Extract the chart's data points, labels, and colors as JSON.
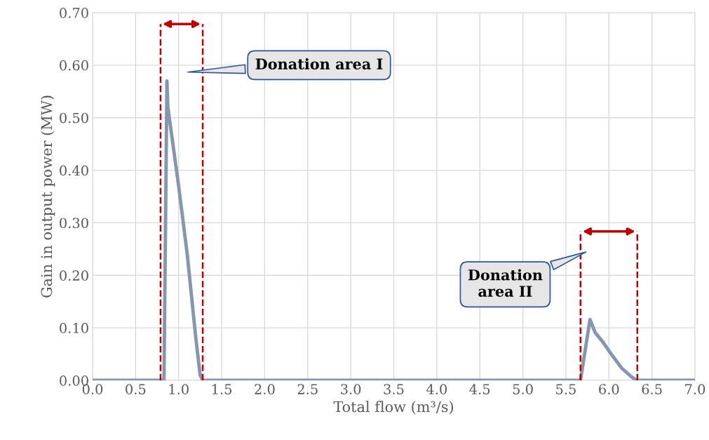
{
  "chart_data": {
    "type": "line",
    "xlabel": "Total flow (m³/s)",
    "ylabel": "Gain in output power (MW)",
    "x": [
      0,
      0.83,
      0.864,
      0.875,
      1.0,
      1.1,
      1.2,
      1.25,
      1.28,
      5.67,
      5.78,
      5.84,
      5.93,
      6.04,
      6.15,
      6.26,
      6.32,
      7.0
    ],
    "series": [
      {
        "color": "#8497b0",
        "values": [
          0,
          0,
          0.57,
          0.52,
          0.37,
          0.24,
          0.08,
          0.01,
          0,
          0,
          0.116,
          0.091,
          0.073,
          0.047,
          0.023,
          0.007,
          0,
          0
        ]
      }
    ],
    "xlim": [
      0,
      7.0
    ],
    "xticks": [
      {
        "value": 0,
        "label": "0.0"
      },
      0.5,
      {
        "value": 1,
        "label": "1.0"
      },
      1.5,
      {
        "value": 2,
        "label": "2.0"
      },
      2.5,
      {
        "value": 3,
        "label": "3.0"
      },
      3.5,
      {
        "value": 4,
        "label": "4.0"
      },
      4.5,
      {
        "value": 5,
        "label": "5.0"
      },
      5.5,
      {
        "value": 6,
        "label": "6.0"
      },
      6.5,
      {
        "value": 7,
        "label": "7.0"
      }
    ],
    "ylim": [
      0,
      0.7
    ],
    "yticks": [
      {
        "value": 0,
        "label": "0.00"
      },
      {
        "value": 0.1,
        "label": "0.10"
      },
      {
        "value": 0.2,
        "label": "0.20"
      },
      {
        "value": 0.3,
        "label": "0.30"
      },
      {
        "value": 0.4,
        "label": "0.40"
      },
      {
        "value": 0.5,
        "label": "0.50"
      },
      {
        "value": 0.6,
        "label": "0.60"
      },
      {
        "value": 0.7,
        "label": "0.70"
      }
    ],
    "ref_lines": [
      {
        "axis": "x",
        "value": 0.79,
        "color": "#c00000",
        "line_style": "dashed"
      },
      {
        "axis": "x",
        "value": 1.28,
        "color": "#c00000",
        "line_style": "dashed"
      },
      {
        "axis": "x",
        "value": 5.67,
        "color": "#c00000",
        "line_style": "dashed"
      },
      {
        "axis": "x",
        "value": 6.33,
        "color": "#c00000",
        "line_style": "dashed"
      }
    ],
    "annotations": [
      "Donation area I",
      "Donation\narea II"
    ],
    "grid": true,
    "marker": "none",
    "line_style": "solid"
  }
}
